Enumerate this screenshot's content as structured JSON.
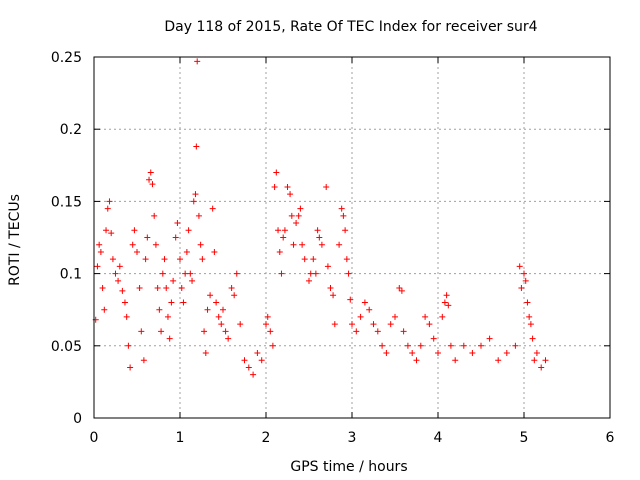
{
  "chart_data": {
    "type": "scatter",
    "title": "Day 118 of 2015, Rate Of TEC Index for receiver sur4",
    "xlabel": "GPS time / hours",
    "ylabel": "ROTI / TECUs",
    "xlim": [
      0,
      6
    ],
    "ylim": [
      0,
      0.25
    ],
    "xticks": [
      0,
      1,
      2,
      3,
      4,
      5,
      6
    ],
    "xtick_labels": [
      "0",
      "1",
      "2",
      "3",
      "4",
      "5",
      "6"
    ],
    "yticks": [
      0,
      0.05,
      0.1,
      0.15,
      0.2,
      0.25
    ],
    "ytick_labels": [
      "0",
      "0.05",
      "0.1",
      "0.15",
      "0.2",
      "0.25"
    ],
    "grid": true,
    "marker": "+",
    "color": "#ff0000",
    "series": [
      {
        "name": "ROTI",
        "points": [
          [
            0.02,
            0.068
          ],
          [
            0.04,
            0.105
          ],
          [
            0.06,
            0.12
          ],
          [
            0.08,
            0.115
          ],
          [
            0.1,
            0.09
          ],
          [
            0.12,
            0.075
          ],
          [
            0.14,
            0.13
          ],
          [
            0.16,
            0.145
          ],
          [
            0.18,
            0.15
          ],
          [
            0.2,
            0.128
          ],
          [
            0.22,
            0.11
          ],
          [
            0.25,
            0.1
          ],
          [
            0.28,
            0.095
          ],
          [
            0.3,
            0.105
          ],
          [
            0.33,
            0.088
          ],
          [
            0.36,
            0.08
          ],
          [
            0.38,
            0.07
          ],
          [
            0.4,
            0.05
          ],
          [
            0.42,
            0.035
          ],
          [
            0.45,
            0.12
          ],
          [
            0.47,
            0.13
          ],
          [
            0.5,
            0.115
          ],
          [
            0.53,
            0.09
          ],
          [
            0.55,
            0.06
          ],
          [
            0.58,
            0.04
          ],
          [
            0.6,
            0.11
          ],
          [
            0.62,
            0.125
          ],
          [
            0.64,
            0.165
          ],
          [
            0.66,
            0.17
          ],
          [
            0.68,
            0.162
          ],
          [
            0.7,
            0.14
          ],
          [
            0.72,
            0.12
          ],
          [
            0.74,
            0.09
          ],
          [
            0.76,
            0.075
          ],
          [
            0.78,
            0.06
          ],
          [
            0.8,
            0.1
          ],
          [
            0.82,
            0.11
          ],
          [
            0.84,
            0.09
          ],
          [
            0.86,
            0.07
          ],
          [
            0.88,
            0.055
          ],
          [
            0.9,
            0.08
          ],
          [
            0.92,
            0.095
          ],
          [
            0.95,
            0.125
          ],
          [
            0.97,
            0.135
          ],
          [
            1.0,
            0.11
          ],
          [
            1.02,
            0.09
          ],
          [
            1.04,
            0.08
          ],
          [
            1.06,
            0.1
          ],
          [
            1.08,
            0.115
          ],
          [
            1.1,
            0.13
          ],
          [
            1.12,
            0.1
          ],
          [
            1.14,
            0.095
          ],
          [
            1.16,
            0.15
          ],
          [
            1.18,
            0.155
          ],
          [
            1.19,
            0.188
          ],
          [
            1.2,
            0.247
          ],
          [
            1.22,
            0.14
          ],
          [
            1.24,
            0.12
          ],
          [
            1.26,
            0.11
          ],
          [
            1.28,
            0.06
          ],
          [
            1.3,
            0.045
          ],
          [
            1.32,
            0.075
          ],
          [
            1.35,
            0.085
          ],
          [
            1.38,
            0.145
          ],
          [
            1.4,
            0.115
          ],
          [
            1.42,
            0.08
          ],
          [
            1.45,
            0.07
          ],
          [
            1.48,
            0.065
          ],
          [
            1.5,
            0.075
          ],
          [
            1.53,
            0.06
          ],
          [
            1.56,
            0.055
          ],
          [
            1.6,
            0.09
          ],
          [
            1.63,
            0.085
          ],
          [
            1.66,
            0.1
          ],
          [
            1.7,
            0.065
          ],
          [
            1.75,
            0.04
          ],
          [
            1.8,
            0.035
          ],
          [
            1.85,
            0.03
          ],
          [
            1.9,
            0.045
          ],
          [
            1.95,
            0.04
          ],
          [
            2.0,
            0.065
          ],
          [
            2.02,
            0.07
          ],
          [
            2.05,
            0.06
          ],
          [
            2.08,
            0.05
          ],
          [
            2.1,
            0.16
          ],
          [
            2.12,
            0.17
          ],
          [
            2.14,
            0.13
          ],
          [
            2.16,
            0.115
          ],
          [
            2.18,
            0.1
          ],
          [
            2.2,
            0.125
          ],
          [
            2.22,
            0.13
          ],
          [
            2.25,
            0.16
          ],
          [
            2.28,
            0.155
          ],
          [
            2.3,
            0.14
          ],
          [
            2.32,
            0.12
          ],
          [
            2.35,
            0.135
          ],
          [
            2.38,
            0.14
          ],
          [
            2.4,
            0.145
          ],
          [
            2.42,
            0.12
          ],
          [
            2.45,
            0.11
          ],
          [
            2.5,
            0.095
          ],
          [
            2.52,
            0.1
          ],
          [
            2.55,
            0.11
          ],
          [
            2.58,
            0.1
          ],
          [
            2.6,
            0.13
          ],
          [
            2.62,
            0.125
          ],
          [
            2.65,
            0.12
          ],
          [
            2.7,
            0.16
          ],
          [
            2.72,
            0.105
          ],
          [
            2.75,
            0.09
          ],
          [
            2.78,
            0.085
          ],
          [
            2.8,
            0.065
          ],
          [
            2.85,
            0.12
          ],
          [
            2.88,
            0.145
          ],
          [
            2.9,
            0.14
          ],
          [
            2.92,
            0.13
          ],
          [
            2.94,
            0.11
          ],
          [
            2.96,
            0.1
          ],
          [
            2.98,
            0.082
          ],
          [
            3.0,
            0.065
          ],
          [
            3.05,
            0.06
          ],
          [
            3.1,
            0.07
          ],
          [
            3.15,
            0.08
          ],
          [
            3.2,
            0.075
          ],
          [
            3.25,
            0.065
          ],
          [
            3.3,
            0.06
          ],
          [
            3.35,
            0.05
          ],
          [
            3.4,
            0.045
          ],
          [
            3.45,
            0.065
          ],
          [
            3.5,
            0.07
          ],
          [
            3.55,
            0.09
          ],
          [
            3.58,
            0.088
          ],
          [
            3.6,
            0.06
          ],
          [
            3.65,
            0.05
          ],
          [
            3.7,
            0.045
          ],
          [
            3.75,
            0.04
          ],
          [
            3.8,
            0.05
          ],
          [
            3.85,
            0.07
          ],
          [
            3.9,
            0.065
          ],
          [
            3.95,
            0.055
          ],
          [
            4.0,
            0.045
          ],
          [
            4.05,
            0.07
          ],
          [
            4.08,
            0.08
          ],
          [
            4.1,
            0.085
          ],
          [
            4.12,
            0.078
          ],
          [
            4.15,
            0.05
          ],
          [
            4.2,
            0.04
          ],
          [
            4.3,
            0.05
          ],
          [
            4.4,
            0.045
          ],
          [
            4.5,
            0.05
          ],
          [
            4.6,
            0.055
          ],
          [
            4.7,
            0.04
          ],
          [
            4.8,
            0.045
          ],
          [
            4.9,
            0.05
          ],
          [
            4.95,
            0.105
          ],
          [
            4.97,
            0.09
          ],
          [
            5.0,
            0.1
          ],
          [
            5.02,
            0.095
          ],
          [
            5.04,
            0.08
          ],
          [
            5.06,
            0.07
          ],
          [
            5.08,
            0.065
          ],
          [
            5.1,
            0.055
          ],
          [
            5.12,
            0.04
          ],
          [
            5.15,
            0.045
          ],
          [
            5.2,
            0.035
          ],
          [
            5.25,
            0.04
          ]
        ]
      }
    ]
  }
}
